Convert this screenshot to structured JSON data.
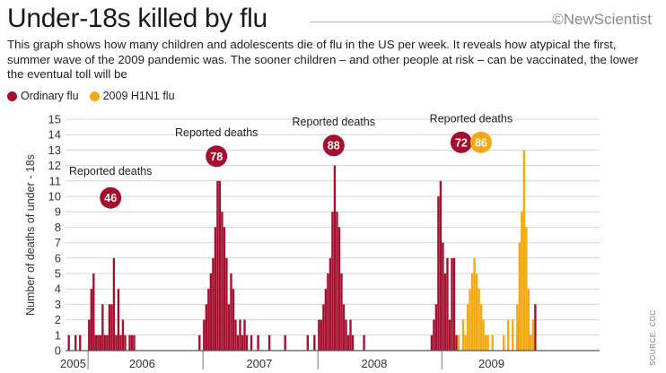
{
  "header": {
    "title": "Under-18s killed by flu",
    "brand": "©NewScientist",
    "subtitle": "This graph shows how many children and adolescents die of flu in the US per week. It reveals how atypical the first, summer wave of the 2009 pandemic was. The sooner children – and other people at risk – can be vaccinated, the lower the eventual toll will be"
  },
  "legend": [
    {
      "label": "Ordinary flu",
      "color": "#a50e2d"
    },
    {
      "label": "2009 H1N1 flu",
      "color": "#f5a90f"
    }
  ],
  "source": "SOURCE: CDC",
  "chart_data": {
    "type": "bar",
    "ylabel": "Number of deaths of under - 18s",
    "ylim": [
      0,
      15
    ],
    "yticks": [
      0,
      1,
      2,
      3,
      4,
      5,
      6,
      7,
      8,
      9,
      10,
      11,
      12,
      13,
      14,
      15
    ],
    "x_unit": "week index (week 0 = first week of 2005 season)",
    "xlim": [
      0,
      237
    ],
    "xticks": [
      {
        "label": "2005",
        "x": 0
      },
      {
        "label": "2006",
        "x": 34
      },
      {
        "label": "2007",
        "x": 86
      },
      {
        "label": "2008",
        "x": 137
      },
      {
        "label": "2009",
        "x": 189
      }
    ],
    "season_dividers": [
      10,
      61,
      112,
      167
    ],
    "series": [
      {
        "name": "Ordinary flu",
        "color": "#a50e2d",
        "points": [
          [
            1,
            1
          ],
          [
            4,
            1
          ],
          [
            6,
            1
          ],
          [
            10,
            2
          ],
          [
            11,
            4
          ],
          [
            12,
            5
          ],
          [
            13,
            1
          ],
          [
            14,
            1
          ],
          [
            15,
            1
          ],
          [
            16,
            3
          ],
          [
            17,
            1
          ],
          [
            18,
            1
          ],
          [
            19,
            3
          ],
          [
            20,
            3
          ],
          [
            21,
            6
          ],
          [
            22,
            1
          ],
          [
            23,
            4
          ],
          [
            24,
            1
          ],
          [
            25,
            2
          ],
          [
            26,
            1
          ],
          [
            28,
            1
          ],
          [
            29,
            1
          ],
          [
            30,
            1
          ],
          [
            59,
            1
          ],
          [
            61,
            2
          ],
          [
            62,
            3
          ],
          [
            63,
            4
          ],
          [
            64,
            5
          ],
          [
            65,
            6
          ],
          [
            66,
            8
          ],
          [
            67,
            11
          ],
          [
            68,
            11
          ],
          [
            69,
            9
          ],
          [
            70,
            8
          ],
          [
            71,
            6
          ],
          [
            72,
            3
          ],
          [
            73,
            5
          ],
          [
            74,
            4
          ],
          [
            75,
            2
          ],
          [
            76,
            1
          ],
          [
            77,
            2
          ],
          [
            78,
            1
          ],
          [
            79,
            2
          ],
          [
            80,
            1
          ],
          [
            82,
            1
          ],
          [
            85,
            1
          ],
          [
            90,
            1
          ],
          [
            97,
            1
          ],
          [
            107,
            1
          ],
          [
            110,
            1
          ],
          [
            112,
            2
          ],
          [
            113,
            2
          ],
          [
            114,
            3
          ],
          [
            115,
            4
          ],
          [
            116,
            5
          ],
          [
            117,
            6
          ],
          [
            118,
            9
          ],
          [
            119,
            12
          ],
          [
            120,
            9
          ],
          [
            121,
            8
          ],
          [
            122,
            5
          ],
          [
            123,
            3
          ],
          [
            124,
            2
          ],
          [
            125,
            1
          ],
          [
            126,
            2
          ],
          [
            127,
            1
          ],
          [
            132,
            1
          ],
          [
            162,
            1
          ],
          [
            163,
            2
          ],
          [
            164,
            3
          ],
          [
            165,
            10
          ],
          [
            166,
            11
          ],
          [
            167,
            7
          ],
          [
            168,
            5
          ],
          [
            169,
            6
          ],
          [
            170,
            2
          ],
          [
            171,
            6
          ],
          [
            172,
            6
          ],
          [
            173,
            1
          ],
          [
            200,
            1
          ],
          [
            201,
            2
          ],
          [
            206,
            1
          ],
          [
            208,
            3
          ]
        ]
      },
      {
        "name": "2009 H1N1 flu",
        "color": "#f5a90f",
        "points": [
          [
            174,
            1
          ],
          [
            176,
            2
          ],
          [
            177,
            1
          ],
          [
            178,
            3
          ],
          [
            179,
            4
          ],
          [
            180,
            5
          ],
          [
            181,
            6
          ],
          [
            182,
            5
          ],
          [
            183,
            4
          ],
          [
            184,
            3
          ],
          [
            185,
            2
          ],
          [
            186,
            1
          ],
          [
            187,
            1
          ],
          [
            189,
            1
          ],
          [
            194,
            1
          ],
          [
            196,
            2
          ],
          [
            198,
            2
          ],
          [
            200,
            3
          ],
          [
            201,
            7
          ],
          [
            202,
            9
          ],
          [
            203,
            13
          ],
          [
            204,
            8
          ],
          [
            205,
            4
          ],
          [
            206,
            1
          ],
          [
            207,
            2
          ]
        ]
      }
    ],
    "annotations": [
      {
        "label": "Reported deaths",
        "value": 46,
        "x": 20,
        "y": 11.4,
        "badge_y": 9.9,
        "series": [
          "Ordinary flu"
        ]
      },
      {
        "label": "Reported deaths",
        "value": 78,
        "x": 67,
        "y": 13.9,
        "badge_y": 12.6,
        "series": [
          "Ordinary flu"
        ]
      },
      {
        "label": "Reported deaths",
        "value": 88,
        "x": 119,
        "y": 14.6,
        "badge_y": 13.3,
        "series": [
          "Ordinary flu"
        ]
      },
      {
        "label": "Reported deaths",
        "value": "72",
        "value2": "86",
        "x": 180,
        "y": 14.8,
        "badge_y": 13.5,
        "series": [
          "Ordinary flu",
          "2009 H1N1 flu"
        ]
      }
    ]
  }
}
